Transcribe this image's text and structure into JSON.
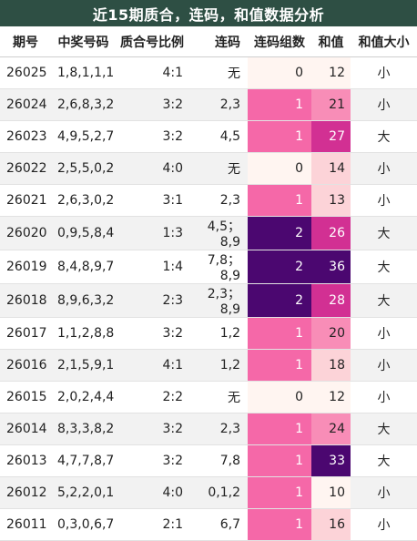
{
  "title": "近15期质合，连码，和值数据分析",
  "headers": [
    "期号",
    "中奖号码",
    "质合号比例",
    "连码",
    "连码组数",
    "和值",
    "和值大小"
  ],
  "colors": {
    "title_bg": "#2e4f44",
    "pair_count": {
      "0": "#fff5f1",
      "1": "#f568a8",
      "2": "#4b0770"
    },
    "sum_scale": [
      "#fff5f1",
      "#fcd3d8",
      "#f88db7",
      "#d23093",
      "#4b0770"
    ]
  },
  "rows": [
    {
      "issue": "26025",
      "numbers": "1,8,1,1,1",
      "ratio": "4:1",
      "consec": "无",
      "pairs": "0",
      "sum": "12",
      "size": "小"
    },
    {
      "issue": "26024",
      "numbers": "2,6,8,3,2",
      "ratio": "3:2",
      "consec": "2,3",
      "pairs": "1",
      "sum": "21",
      "size": "小"
    },
    {
      "issue": "26023",
      "numbers": "4,9,5,2,7",
      "ratio": "3:2",
      "consec": "4,5",
      "pairs": "1",
      "sum": "27",
      "size": "大"
    },
    {
      "issue": "26022",
      "numbers": "2,5,5,0,2",
      "ratio": "4:0",
      "consec": "无",
      "pairs": "0",
      "sum": "14",
      "size": "小"
    },
    {
      "issue": "26021",
      "numbers": "2,6,3,0,2",
      "ratio": "3:1",
      "consec": "2,3",
      "pairs": "1",
      "sum": "13",
      "size": "小"
    },
    {
      "issue": "26020",
      "numbers": "0,9,5,8,4",
      "ratio": "1:3",
      "consec": "4,5；8,9",
      "pairs": "2",
      "sum": "26",
      "size": "大"
    },
    {
      "issue": "26019",
      "numbers": "8,4,8,9,7",
      "ratio": "1:4",
      "consec": "7,8；8,9",
      "pairs": "2",
      "sum": "36",
      "size": "大"
    },
    {
      "issue": "26018",
      "numbers": "8,9,6,3,2",
      "ratio": "2:3",
      "consec": "2,3；8,9",
      "pairs": "2",
      "sum": "28",
      "size": "大"
    },
    {
      "issue": "26017",
      "numbers": "1,1,2,8,8",
      "ratio": "3:2",
      "consec": "1,2",
      "pairs": "1",
      "sum": "20",
      "size": "小"
    },
    {
      "issue": "26016",
      "numbers": "2,1,5,9,1",
      "ratio": "4:1",
      "consec": "1,2",
      "pairs": "1",
      "sum": "18",
      "size": "小"
    },
    {
      "issue": "26015",
      "numbers": "2,0,2,4,4",
      "ratio": "2:2",
      "consec": "无",
      "pairs": "0",
      "sum": "12",
      "size": "小"
    },
    {
      "issue": "26014",
      "numbers": "8,3,3,8,2",
      "ratio": "3:2",
      "consec": "2,3",
      "pairs": "1",
      "sum": "24",
      "size": "大"
    },
    {
      "issue": "26013",
      "numbers": "4,7,7,8,7",
      "ratio": "3:2",
      "consec": "7,8",
      "pairs": "1",
      "sum": "33",
      "size": "大"
    },
    {
      "issue": "26012",
      "numbers": "5,2,2,0,1",
      "ratio": "4:0",
      "consec": "0,1,2",
      "pairs": "1",
      "sum": "10",
      "size": "小"
    },
    {
      "issue": "26011",
      "numbers": "0,3,0,6,7",
      "ratio": "2:1",
      "consec": "6,7",
      "pairs": "1",
      "sum": "16",
      "size": "小"
    }
  ]
}
